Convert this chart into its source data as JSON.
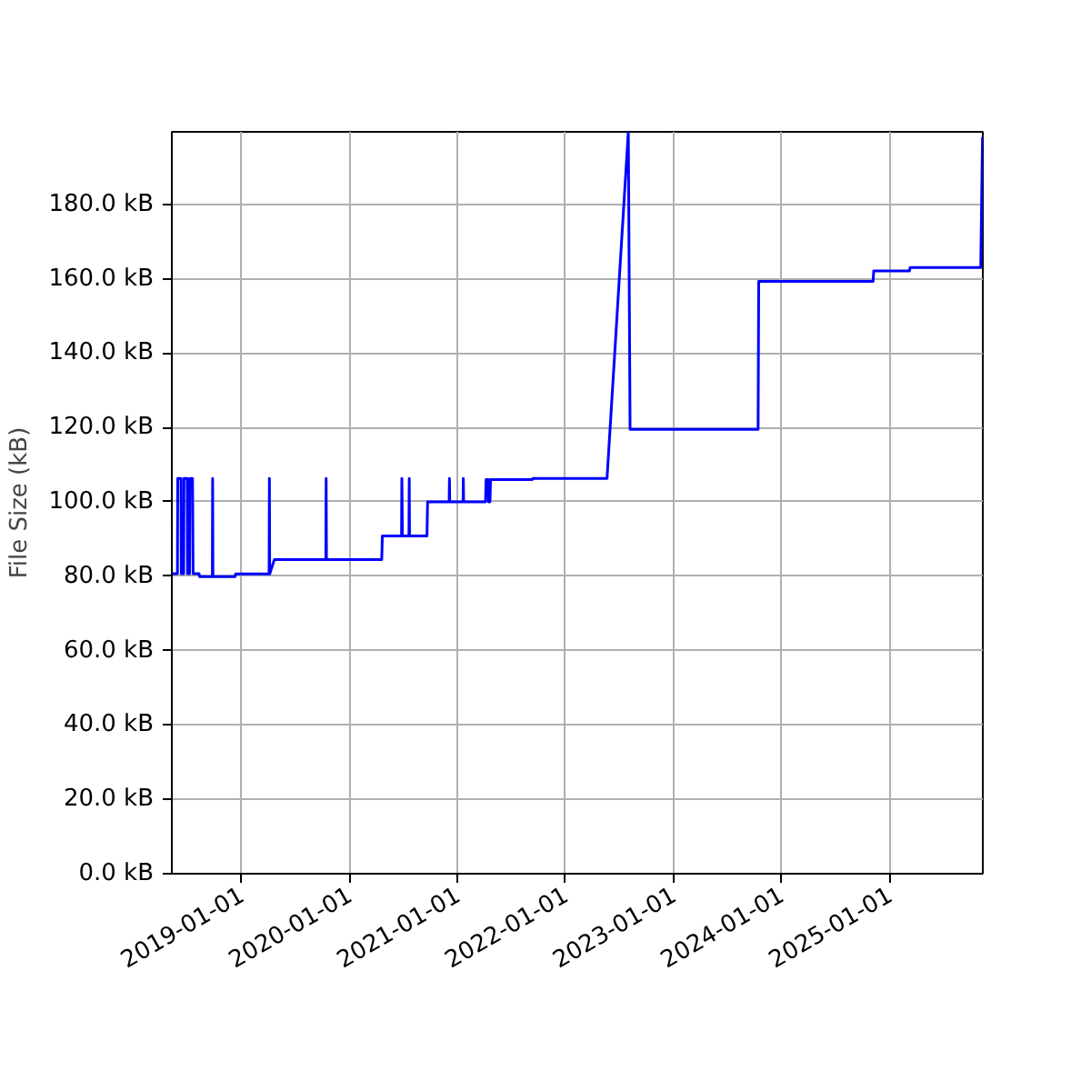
{
  "chart_data": {
    "type": "line",
    "ylabel": "File Size (kB)",
    "x": [
      "2018-05-11",
      "2018-05-30",
      "2018-05-31",
      "2018-06-11",
      "2018-06-12",
      "2018-06-20",
      "2018-06-21",
      "2018-07-02",
      "2018-07-03",
      "2018-07-10",
      "2018-07-11",
      "2018-07-20",
      "2018-07-22",
      "2018-08-11",
      "2018-08-13",
      "2018-09-25",
      "2018-09-26",
      "2018-09-27",
      "2018-12-11",
      "2018-12-13",
      "2019-04-05",
      "2019-04-06",
      "2019-04-07",
      "2019-04-23",
      "2019-10-14",
      "2019-10-15",
      "2019-10-16",
      "2020-04-20",
      "2020-04-22",
      "2020-06-26",
      "2020-06-27",
      "2020-06-29",
      "2020-07-21",
      "2020-07-22",
      "2020-07-23",
      "2020-09-20",
      "2020-09-22",
      "2020-12-04",
      "2020-12-05",
      "2020-12-06",
      "2021-01-20",
      "2021-01-21",
      "2021-01-22",
      "2021-04-06",
      "2021-04-08",
      "2021-04-15",
      "2021-04-16",
      "2021-04-21",
      "2021-04-23",
      "2021-09-11",
      "2021-09-13",
      "2022-05-22",
      "2022-08-02",
      "2022-08-08",
      "2023-10-15",
      "2023-10-17",
      "2024-11-07",
      "2024-11-09",
      "2025-03-10",
      "2025-03-12",
      "2025-11-06",
      "2025-11-12"
    ],
    "series": [
      {
        "color": "#0000ff",
        "values": [
          80.7,
          80.7,
          106.3,
          106.3,
          80.7,
          80.7,
          106.3,
          106.3,
          80.7,
          80.7,
          106.3,
          106.3,
          80.7,
          80.7,
          79.9,
          79.9,
          106.3,
          79.9,
          79.9,
          80.6,
          80.6,
          106.3,
          80.6,
          84.5,
          84.5,
          106.3,
          84.5,
          84.5,
          90.8,
          90.8,
          106.3,
          90.8,
          90.8,
          106.3,
          90.8,
          90.8,
          100.0,
          100.0,
          106.3,
          100.0,
          100.0,
          106.3,
          100.0,
          100.0,
          106.0,
          106.0,
          100.0,
          100.0,
          106.0,
          106.0,
          106.3,
          106.3,
          199.5,
          119.5,
          119.5,
          159.3,
          159.3,
          162.1,
          162.1,
          163.0,
          163.0,
          198.1
        ]
      }
    ],
    "xlim": [
      "2018-05-11",
      "2025-11-13"
    ],
    "ylim": [
      0,
      199.5
    ],
    "xticks": [
      "2019-01-01",
      "2020-01-01",
      "2021-01-01",
      "2022-01-01",
      "2023-01-01",
      "2024-01-01",
      "2025-01-01"
    ],
    "yticks": [
      {
        "value": 0,
        "label": "0.0 kB"
      },
      {
        "value": 20,
        "label": "20.0 kB"
      },
      {
        "value": 40,
        "label": "40.0 kB"
      },
      {
        "value": 60,
        "label": "60.0 kB"
      },
      {
        "value": 80,
        "label": "80.0 kB"
      },
      {
        "value": 100,
        "label": "100.0 kB"
      },
      {
        "value": 120,
        "label": "120.0 kB"
      },
      {
        "value": 140,
        "label": "140.0 kB"
      },
      {
        "value": 160,
        "label": "160.0 kB"
      },
      {
        "value": 180,
        "label": "180.0 kB"
      }
    ],
    "grid": true,
    "line_style": "solid"
  }
}
